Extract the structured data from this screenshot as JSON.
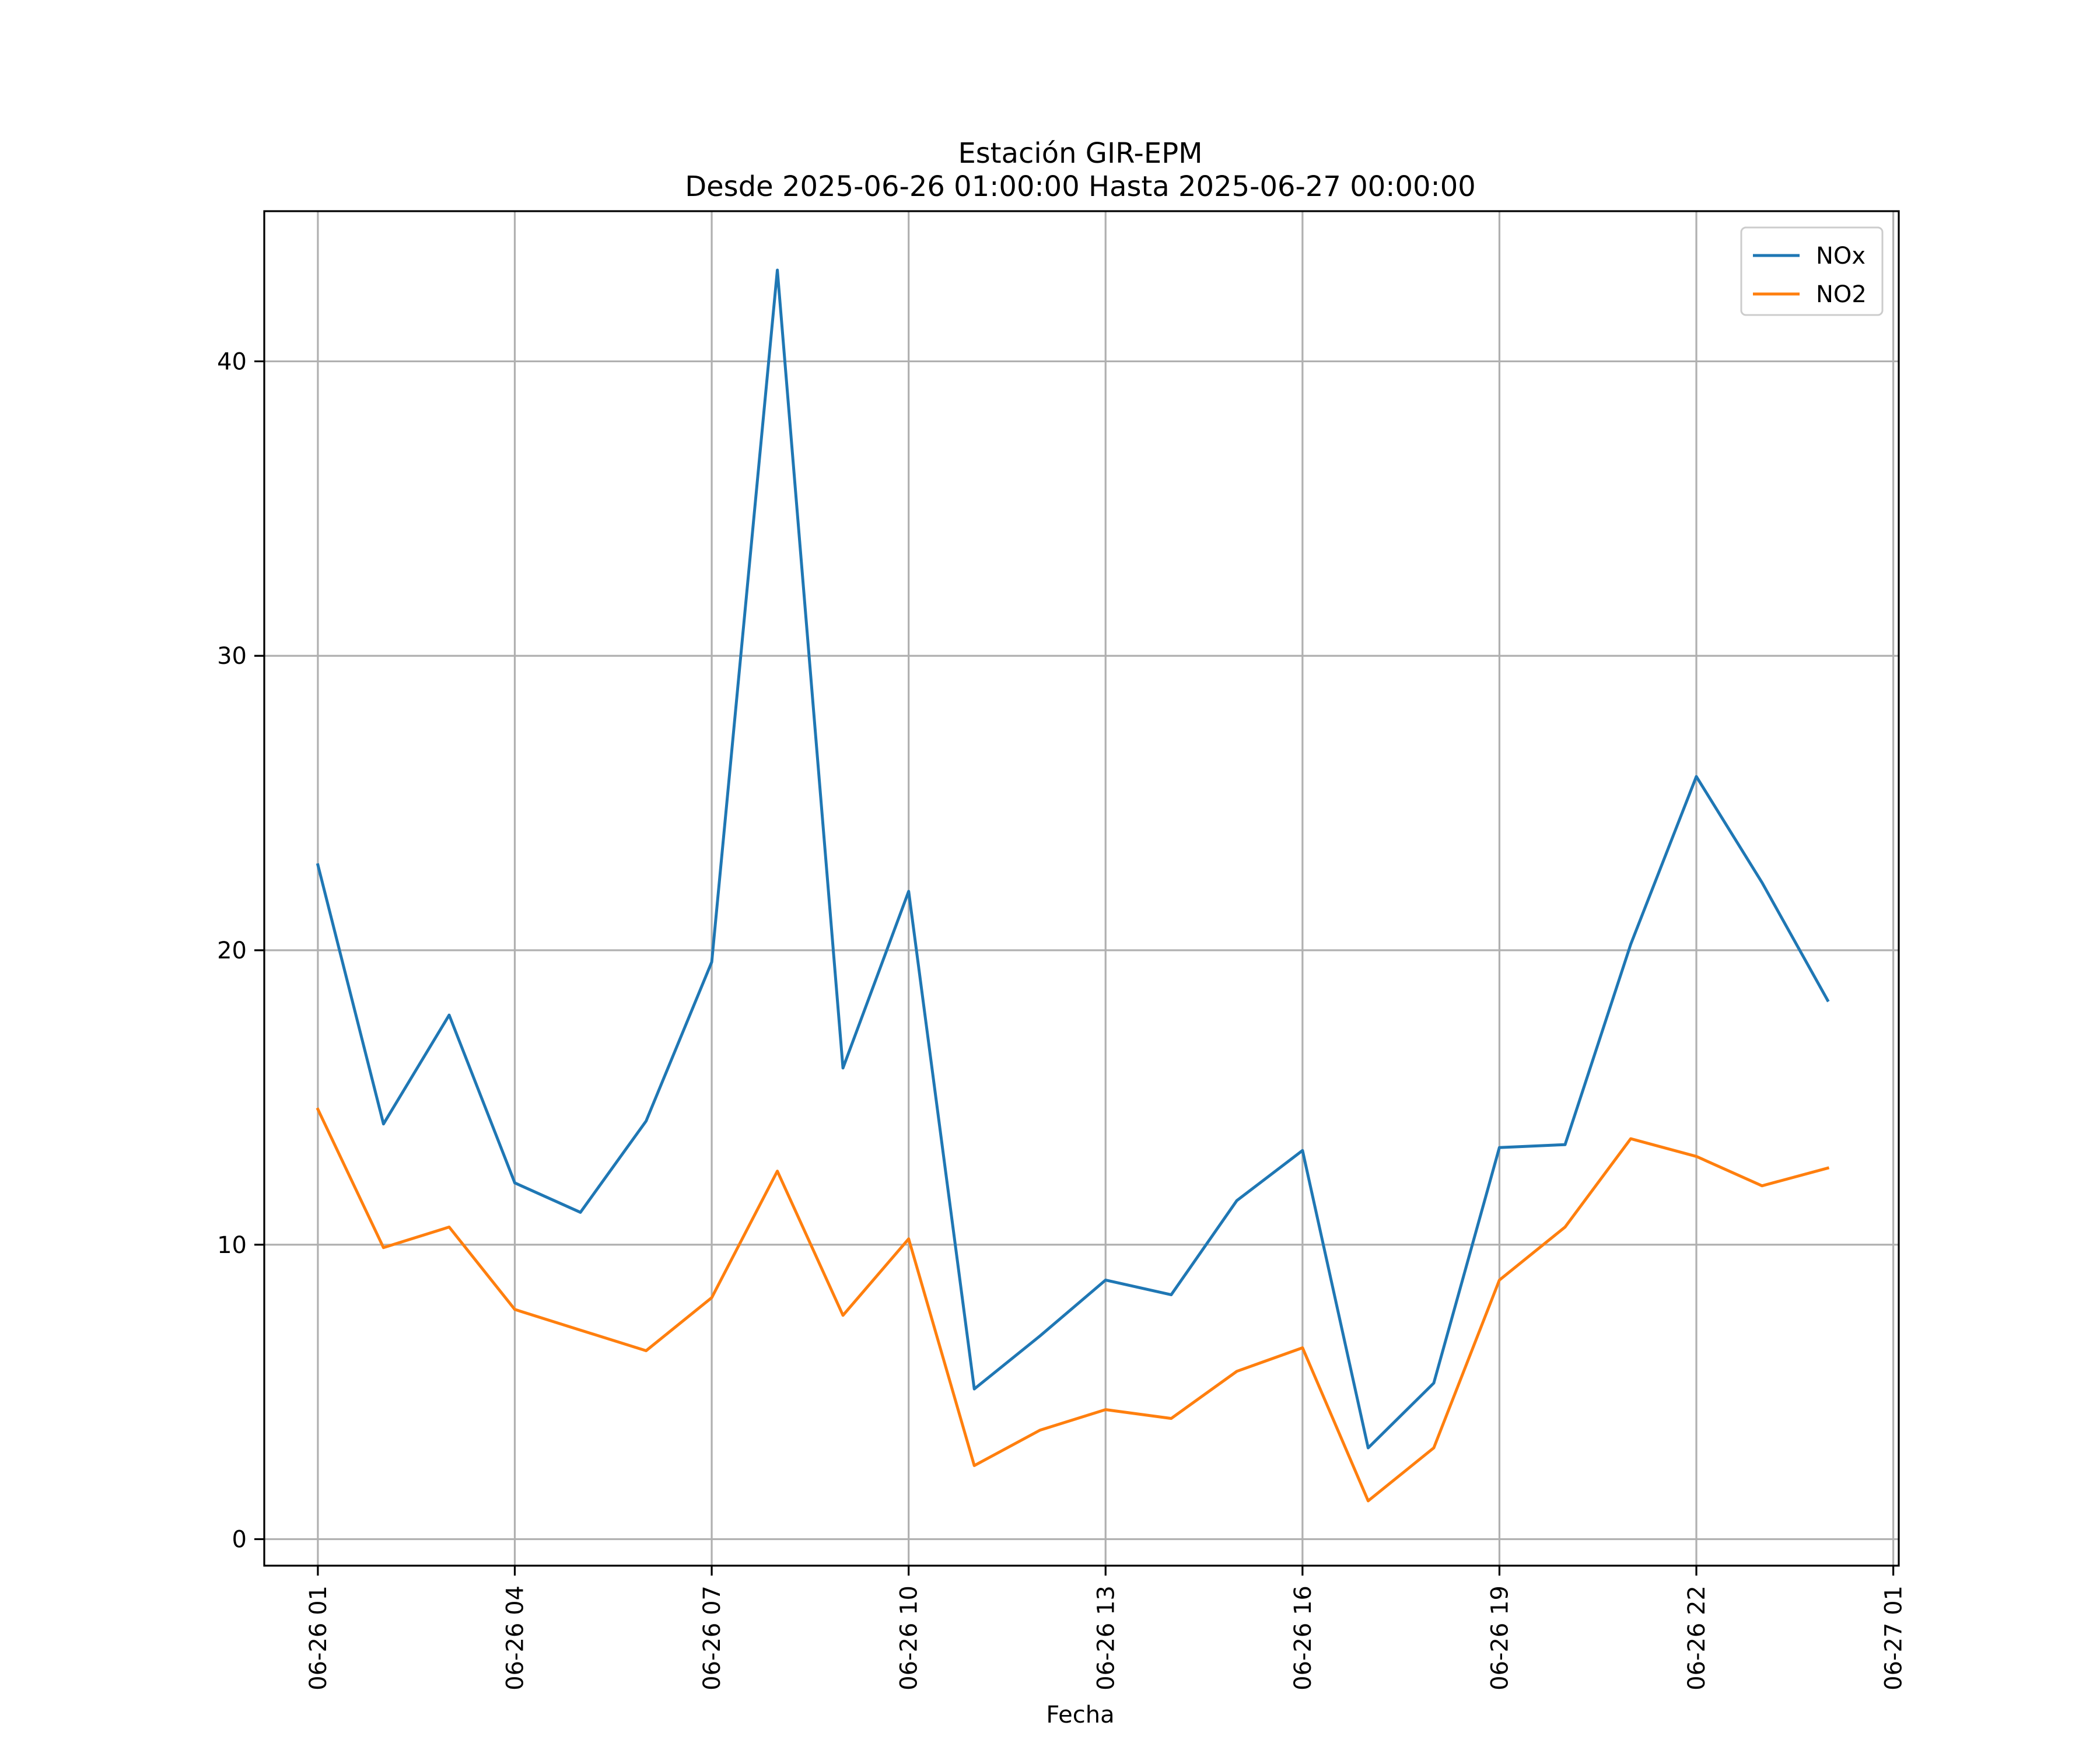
{
  "chart_data": {
    "type": "line",
    "title": [
      "Estación GIR-EPM",
      "Desde 2025-06-26 01:00:00 Hasta 2025-06-27 00:00:00"
    ],
    "xlabel": "Fecha",
    "ylabel": "",
    "x": [
      "06-26 01:00",
      "06-26 02:00",
      "06-26 03:00",
      "06-26 04:00",
      "06-26 05:00",
      "06-26 06:00",
      "06-26 07:00",
      "06-26 08:00",
      "06-26 09:00",
      "06-26 10:00",
      "06-26 11:00",
      "06-26 12:00",
      "06-26 13:00",
      "06-26 14:00",
      "06-26 15:00",
      "06-26 16:00",
      "06-26 17:00",
      "06-26 18:00",
      "06-26 19:00",
      "06-26 20:00",
      "06-26 21:00",
      "06-26 22:00",
      "06-26 23:00",
      "06-27 00:00"
    ],
    "x_ticks": [
      "06-26 01",
      "06-26 04",
      "06-26 07",
      "06-26 10",
      "06-26 13",
      "06-26 16",
      "06-26 19",
      "06-26 22",
      "06-27 01"
    ],
    "x_range": [
      "06-26 00:11",
      "06-27 01:05"
    ],
    "ylim": [
      -0.9,
      45.1
    ],
    "y_ticks": [
      0,
      10,
      20,
      30,
      40
    ],
    "grid": true,
    "legend_position": "top-right",
    "series": [
      {
        "name": "NOx",
        "color": "#1f77b4",
        "values": [
          22.9,
          14.1,
          17.8,
          12.1,
          11.1,
          14.2,
          19.6,
          43.1,
          16.0,
          22.0,
          5.1,
          6.9,
          8.8,
          8.3,
          11.5,
          13.2,
          3.1,
          5.3,
          13.3,
          13.4,
          20.2,
          25.9,
          22.3,
          18.3
        ]
      },
      {
        "name": "NO2",
        "color": "#ff7f0e",
        "values": [
          14.6,
          9.9,
          10.6,
          7.8,
          7.1,
          6.4,
          8.2,
          12.5,
          7.6,
          10.2,
          2.5,
          3.7,
          4.4,
          4.1,
          5.7,
          6.5,
          1.3,
          3.1,
          8.8,
          10.6,
          13.6,
          13.0,
          12.0,
          12.6
        ]
      }
    ]
  }
}
